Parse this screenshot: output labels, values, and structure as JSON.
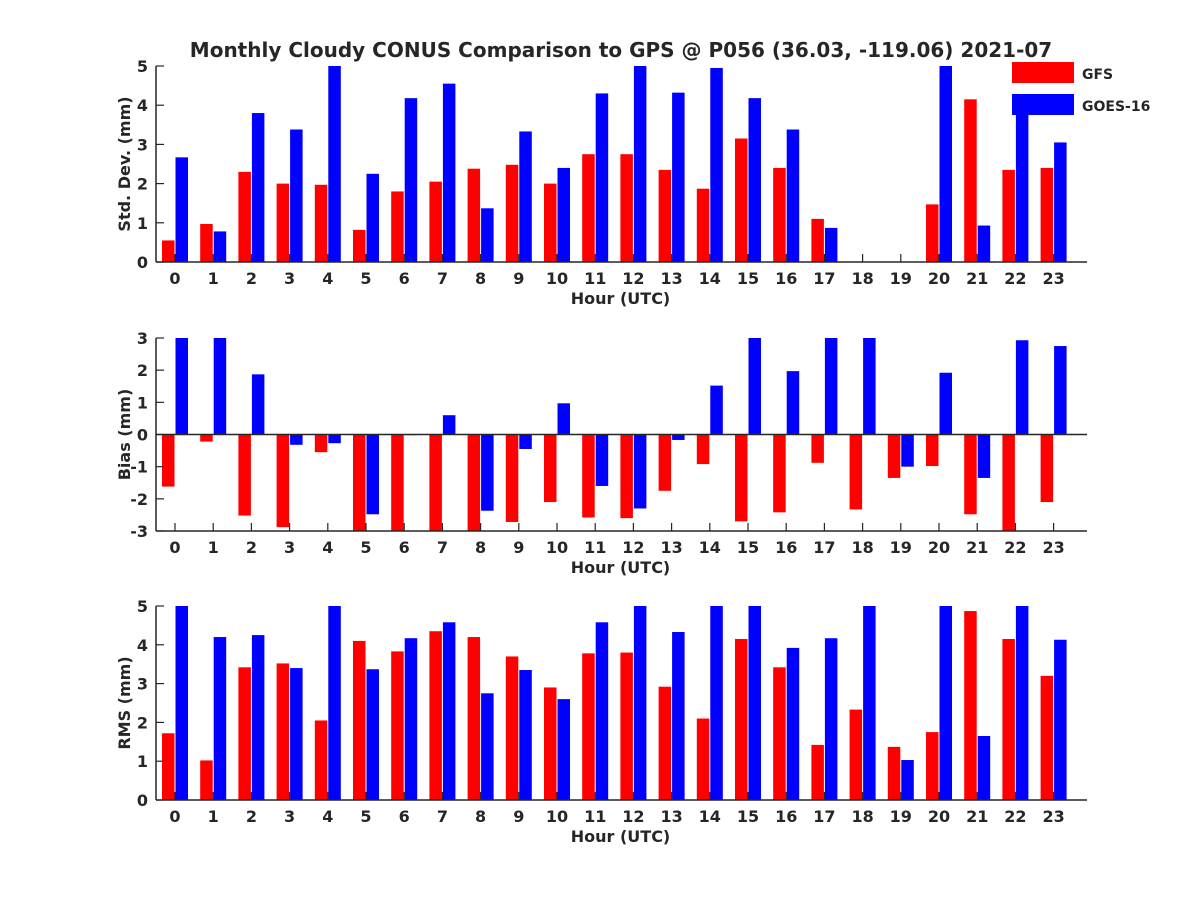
{
  "title": "Monthly Cloudy CONUS Comparison to GPS @ P056 (36.03, -119.06) 2021-07",
  "colors": {
    "GFS": "#ff0000",
    "GOES-16": "#0000ff",
    "axis": "#262626"
  },
  "legend": {
    "placement": "top-right",
    "entries": [
      "GFS",
      "GOES-16"
    ]
  },
  "chart_data": [
    {
      "type": "bar",
      "xlabel": "Hour (UTC)",
      "ylabel": "Std. Dev. (mm)",
      "ylim": [
        0,
        5
      ],
      "yticks": [
        0,
        1,
        2,
        3,
        4,
        5
      ],
      "categories": [
        "0",
        "1",
        "2",
        "3",
        "4",
        "5",
        "6",
        "7",
        "8",
        "9",
        "10",
        "11",
        "12",
        "13",
        "14",
        "15",
        "16",
        "17",
        "18",
        "19",
        "20",
        "21",
        "22",
        "23"
      ],
      "series": [
        {
          "name": "GFS",
          "values": [
            0.55,
            0.97,
            2.3,
            2.0,
            1.97,
            0.82,
            1.8,
            2.05,
            2.38,
            2.48,
            2.0,
            2.75,
            2.75,
            2.35,
            1.87,
            3.15,
            2.4,
            1.1,
            0,
            0,
            1.47,
            4.15,
            2.35,
            2.4
          ]
        },
        {
          "name": "GOES-16",
          "values": [
            2.67,
            0.78,
            3.8,
            3.38,
            5,
            2.25,
            4.18,
            4.55,
            1.37,
            3.33,
            2.4,
            4.3,
            5,
            4.32,
            4.95,
            4.18,
            3.38,
            0.87,
            0,
            0,
            5,
            0.93,
            4.25,
            3.05
          ]
        }
      ]
    },
    {
      "type": "bar",
      "xlabel": "Hour (UTC)",
      "ylabel": "Bias (mm)",
      "ylim": [
        -3,
        3
      ],
      "yticks": [
        -3,
        -2,
        -1,
        0,
        1,
        2,
        3
      ],
      "categories": [
        "0",
        "1",
        "2",
        "3",
        "4",
        "5",
        "6",
        "7",
        "8",
        "9",
        "10",
        "11",
        "12",
        "13",
        "14",
        "15",
        "16",
        "17",
        "18",
        "19",
        "20",
        "21",
        "22",
        "23"
      ],
      "series": [
        {
          "name": "GFS",
          "values": [
            -1.62,
            -0.22,
            -2.52,
            -2.88,
            -0.55,
            -3,
            -3,
            -3,
            -3,
            -2.72,
            -2.1,
            -2.58,
            -2.6,
            -1.75,
            -0.92,
            -2.7,
            -2.42,
            -0.88,
            -2.33,
            -1.35,
            -0.98,
            -2.48,
            -3,
            -2.1
          ]
        },
        {
          "name": "GOES-16",
          "values": [
            3,
            3,
            1.87,
            -0.32,
            -0.27,
            -2.48,
            -0.02,
            0.6,
            -2.37,
            -0.45,
            0.97,
            -1.6,
            -2.3,
            -0.17,
            1.52,
            3,
            1.97,
            3,
            3,
            -1.0,
            1.92,
            -1.35,
            2.93,
            2.75
          ]
        }
      ]
    },
    {
      "type": "bar",
      "xlabel": "Hour (UTC)",
      "ylabel": "RMS (mm)",
      "ylim": [
        0,
        5
      ],
      "yticks": [
        0,
        1,
        2,
        3,
        4,
        5
      ],
      "categories": [
        "0",
        "1",
        "2",
        "3",
        "4",
        "5",
        "6",
        "7",
        "8",
        "9",
        "10",
        "11",
        "12",
        "13",
        "14",
        "15",
        "16",
        "17",
        "18",
        "19",
        "20",
        "21",
        "22",
        "23"
      ],
      "series": [
        {
          "name": "GFS",
          "values": [
            1.72,
            1.02,
            3.42,
            3.52,
            2.05,
            4.1,
            3.83,
            4.35,
            4.2,
            3.7,
            2.9,
            3.78,
            3.8,
            2.92,
            2.1,
            4.15,
            3.42,
            1.42,
            2.33,
            1.37,
            1.75,
            4.87,
            4.15,
            3.2
          ]
        },
        {
          "name": "GOES-16",
          "values": [
            5,
            4.2,
            4.25,
            3.4,
            5,
            3.37,
            4.17,
            4.58,
            2.75,
            3.35,
            2.6,
            4.58,
            5,
            4.33,
            5,
            5,
            3.92,
            4.17,
            5,
            1.03,
            5,
            1.65,
            5,
            4.13
          ]
        }
      ]
    }
  ]
}
